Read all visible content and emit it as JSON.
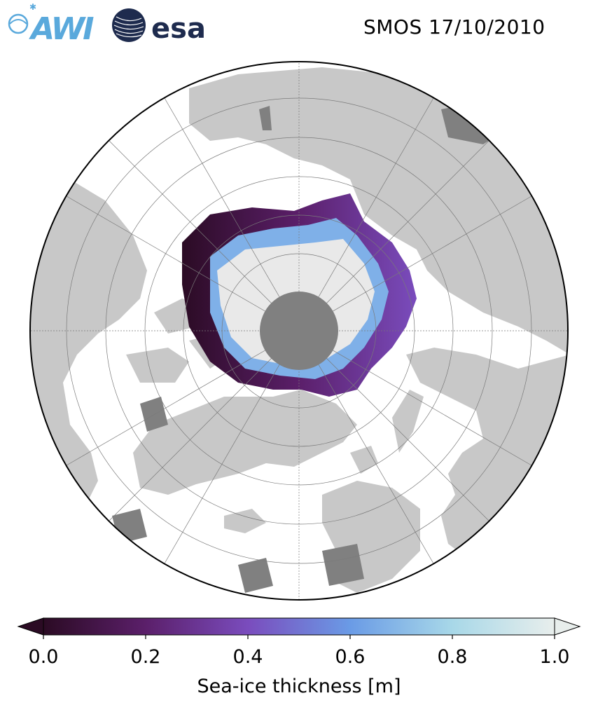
{
  "header": {
    "awi_logo_text": "AWI",
    "esa_logo_text": "esa",
    "title": "SMOS 17/10/2010"
  },
  "colors": {
    "ocean": "#ffffff",
    "land": "#c8c8c8",
    "land_dark": "#808080",
    "ice_background": "#e9e9e9",
    "pole_hole": "#808080",
    "gridline": "#7a7a7a",
    "awi_blue": "#5aa9dc",
    "esa_navy": "#1e2b4e"
  },
  "map": {
    "projection": "north-polar-stereographic",
    "gridlines": true,
    "pole_hole": true
  },
  "colorbar": {
    "label": "Sea-ice thickness [m]",
    "extend": "both",
    "min": 0.0,
    "max": 1.0,
    "ticks": [
      "0.0",
      "0.2",
      "0.4",
      "0.6",
      "0.8",
      "1.0"
    ],
    "tick_values": [
      0.0,
      0.2,
      0.4,
      0.6,
      0.8,
      1.0
    ],
    "gradient_stops": [
      {
        "value": 0.0,
        "color": "#2b0b24"
      },
      {
        "value": 0.2,
        "color": "#5b1f6a"
      },
      {
        "value": 0.4,
        "color": "#7a4cbd"
      },
      {
        "value": 0.6,
        "color": "#6a9be6"
      },
      {
        "value": 0.8,
        "color": "#a8d8e8"
      },
      {
        "value": 1.0,
        "color": "#e8eeec"
      }
    ]
  }
}
